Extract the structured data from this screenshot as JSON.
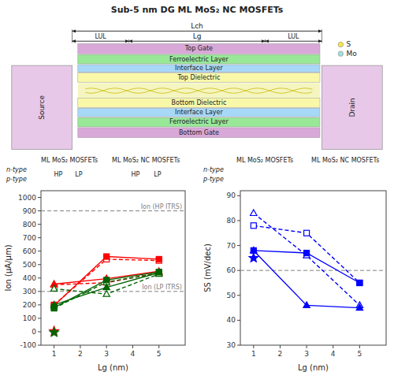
{
  "chart_data": [
    {
      "type": "diagram",
      "title": "Sub-5 nm DG ML MoS₂ NC MOSFETs",
      "categories": [
        "Top Gate",
        "Ferroelectric Layer",
        "Interface Layer",
        "Top Dielectric",
        "Bottom Dielectric",
        "Interface Layer",
        "Ferroelectric Layer",
        "Bottom Gate"
      ],
      "colors": [
        "#d8a8d8",
        "#98e898",
        "#a8d8f8",
        "#f8f8a8",
        "#f8f8a8",
        "#a8d8f8",
        "#98e898",
        "#d8a8d8"
      ],
      "annotations": [
        "Source",
        "Drain",
        "Lch",
        "Lg",
        "LUL",
        "S",
        "Mo"
      ]
    },
    {
      "type": "line",
      "xlabel": "Lg (nm)",
      "ylabel": "Ion (μA/μm)",
      "xlim": [
        0.5,
        6
      ],
      "ylim": [
        -100,
        1050
      ],
      "xticks": [
        1,
        2,
        3,
        4,
        5
      ],
      "yticks": [
        -100,
        0,
        100,
        200,
        300,
        400,
        500,
        600,
        700,
        800,
        900,
        1000
      ],
      "annotations": [
        "ML MoS₂ MOSFETs",
        "ML MoS₂ NC MOSFETs",
        "n-type",
        "p-type",
        "HP",
        "LP",
        "HP",
        "LP"
      ],
      "series": [
        {
          "type": "hline",
          "name": "Ion (HP ITRS)",
          "values": [
            900
          ],
          "color": "gray",
          "line_style": "dashed"
        },
        {
          "type": "hline",
          "name": "Ion (LP ITRS)",
          "values": [
            300
          ],
          "color": "gray",
          "line_style": "dashed"
        },
        {
          "x": [
            1,
            3,
            5
          ],
          "values": [
            200,
            540,
            530
          ],
          "color": "red",
          "line_style": "dashed",
          "marker": "open-square"
        },
        {
          "x": [
            1,
            3,
            5
          ],
          "values": [
            195,
            560,
            540
          ],
          "color": "red",
          "line_style": "solid",
          "marker": "square"
        },
        {
          "x": [
            1,
            3,
            5
          ],
          "values": [
            350,
            365,
            440
          ],
          "color": "red",
          "line_style": "dashed",
          "marker": "open-triangle"
        },
        {
          "x": [
            1,
            3,
            5
          ],
          "values": [
            355,
            395,
            450
          ],
          "color": "red",
          "line_style": "solid",
          "marker": "triangle"
        },
        {
          "x": [
            1,
            3,
            5
          ],
          "values": [
            175,
            370,
            435
          ],
          "color": "darkgreen",
          "line_style": "dashed",
          "marker": "open-square"
        },
        {
          "x": [
            1,
            3,
            5
          ],
          "values": [
            180,
            385,
            445
          ],
          "color": "darkgreen",
          "line_style": "solid",
          "marker": "square"
        },
        {
          "x": [
            1,
            3,
            5
          ],
          "values": [
            320,
            280,
            430
          ],
          "color": "darkgreen",
          "line_style": "dashed",
          "marker": "open-triangle"
        },
        {
          "x": [
            1,
            3,
            5
          ],
          "values": [
            200,
            330,
            440
          ],
          "color": "darkgreen",
          "line_style": "solid",
          "marker": "triangle"
        },
        {
          "type": "scatter",
          "x": [
            1
          ],
          "values": [
            5
          ],
          "color": "red",
          "marker": "star"
        },
        {
          "type": "scatter",
          "x": [
            1
          ],
          "values": [
            -5
          ],
          "color": "darkgreen",
          "marker": "star"
        }
      ]
    },
    {
      "type": "line",
      "xlabel": "Lg (nm)",
      "ylabel": "SS (mV/dec)",
      "xlim": [
        0.5,
        6
      ],
      "ylim": [
        30,
        92
      ],
      "xticks": [
        1,
        2,
        3,
        4,
        5
      ],
      "yticks": [
        30,
        40,
        50,
        60,
        70,
        80,
        90
      ],
      "annotations": [
        "ML MoS₂ MOSFETs",
        "ML MoS₂ NC MOSFETs",
        "n-type",
        "p-type"
      ],
      "series": [
        {
          "type": "hline",
          "values": [
            60
          ],
          "color": "gray",
          "line_style": "dashed"
        },
        {
          "x": [
            1,
            3,
            5
          ],
          "values": [
            78,
            75,
            55
          ],
          "color": "blue",
          "line_style": "dashed",
          "marker": "open-square"
        },
        {
          "x": [
            1,
            3,
            5
          ],
          "values": [
            83,
            66,
            46
          ],
          "color": "blue",
          "line_style": "dashed",
          "marker": "open-triangle"
        },
        {
          "x": [
            1,
            3,
            5
          ],
          "values": [
            68,
            67,
            55
          ],
          "color": "blue",
          "line_style": "solid",
          "marker": "square"
        },
        {
          "x": [
            1,
            3,
            5
          ],
          "values": [
            68,
            46,
            45
          ],
          "color": "blue",
          "line_style": "solid",
          "marker": "triangle"
        },
        {
          "type": "scatter",
          "x": [
            1
          ],
          "values": [
            65
          ],
          "color": "blue",
          "marker": "star"
        }
      ]
    }
  ]
}
